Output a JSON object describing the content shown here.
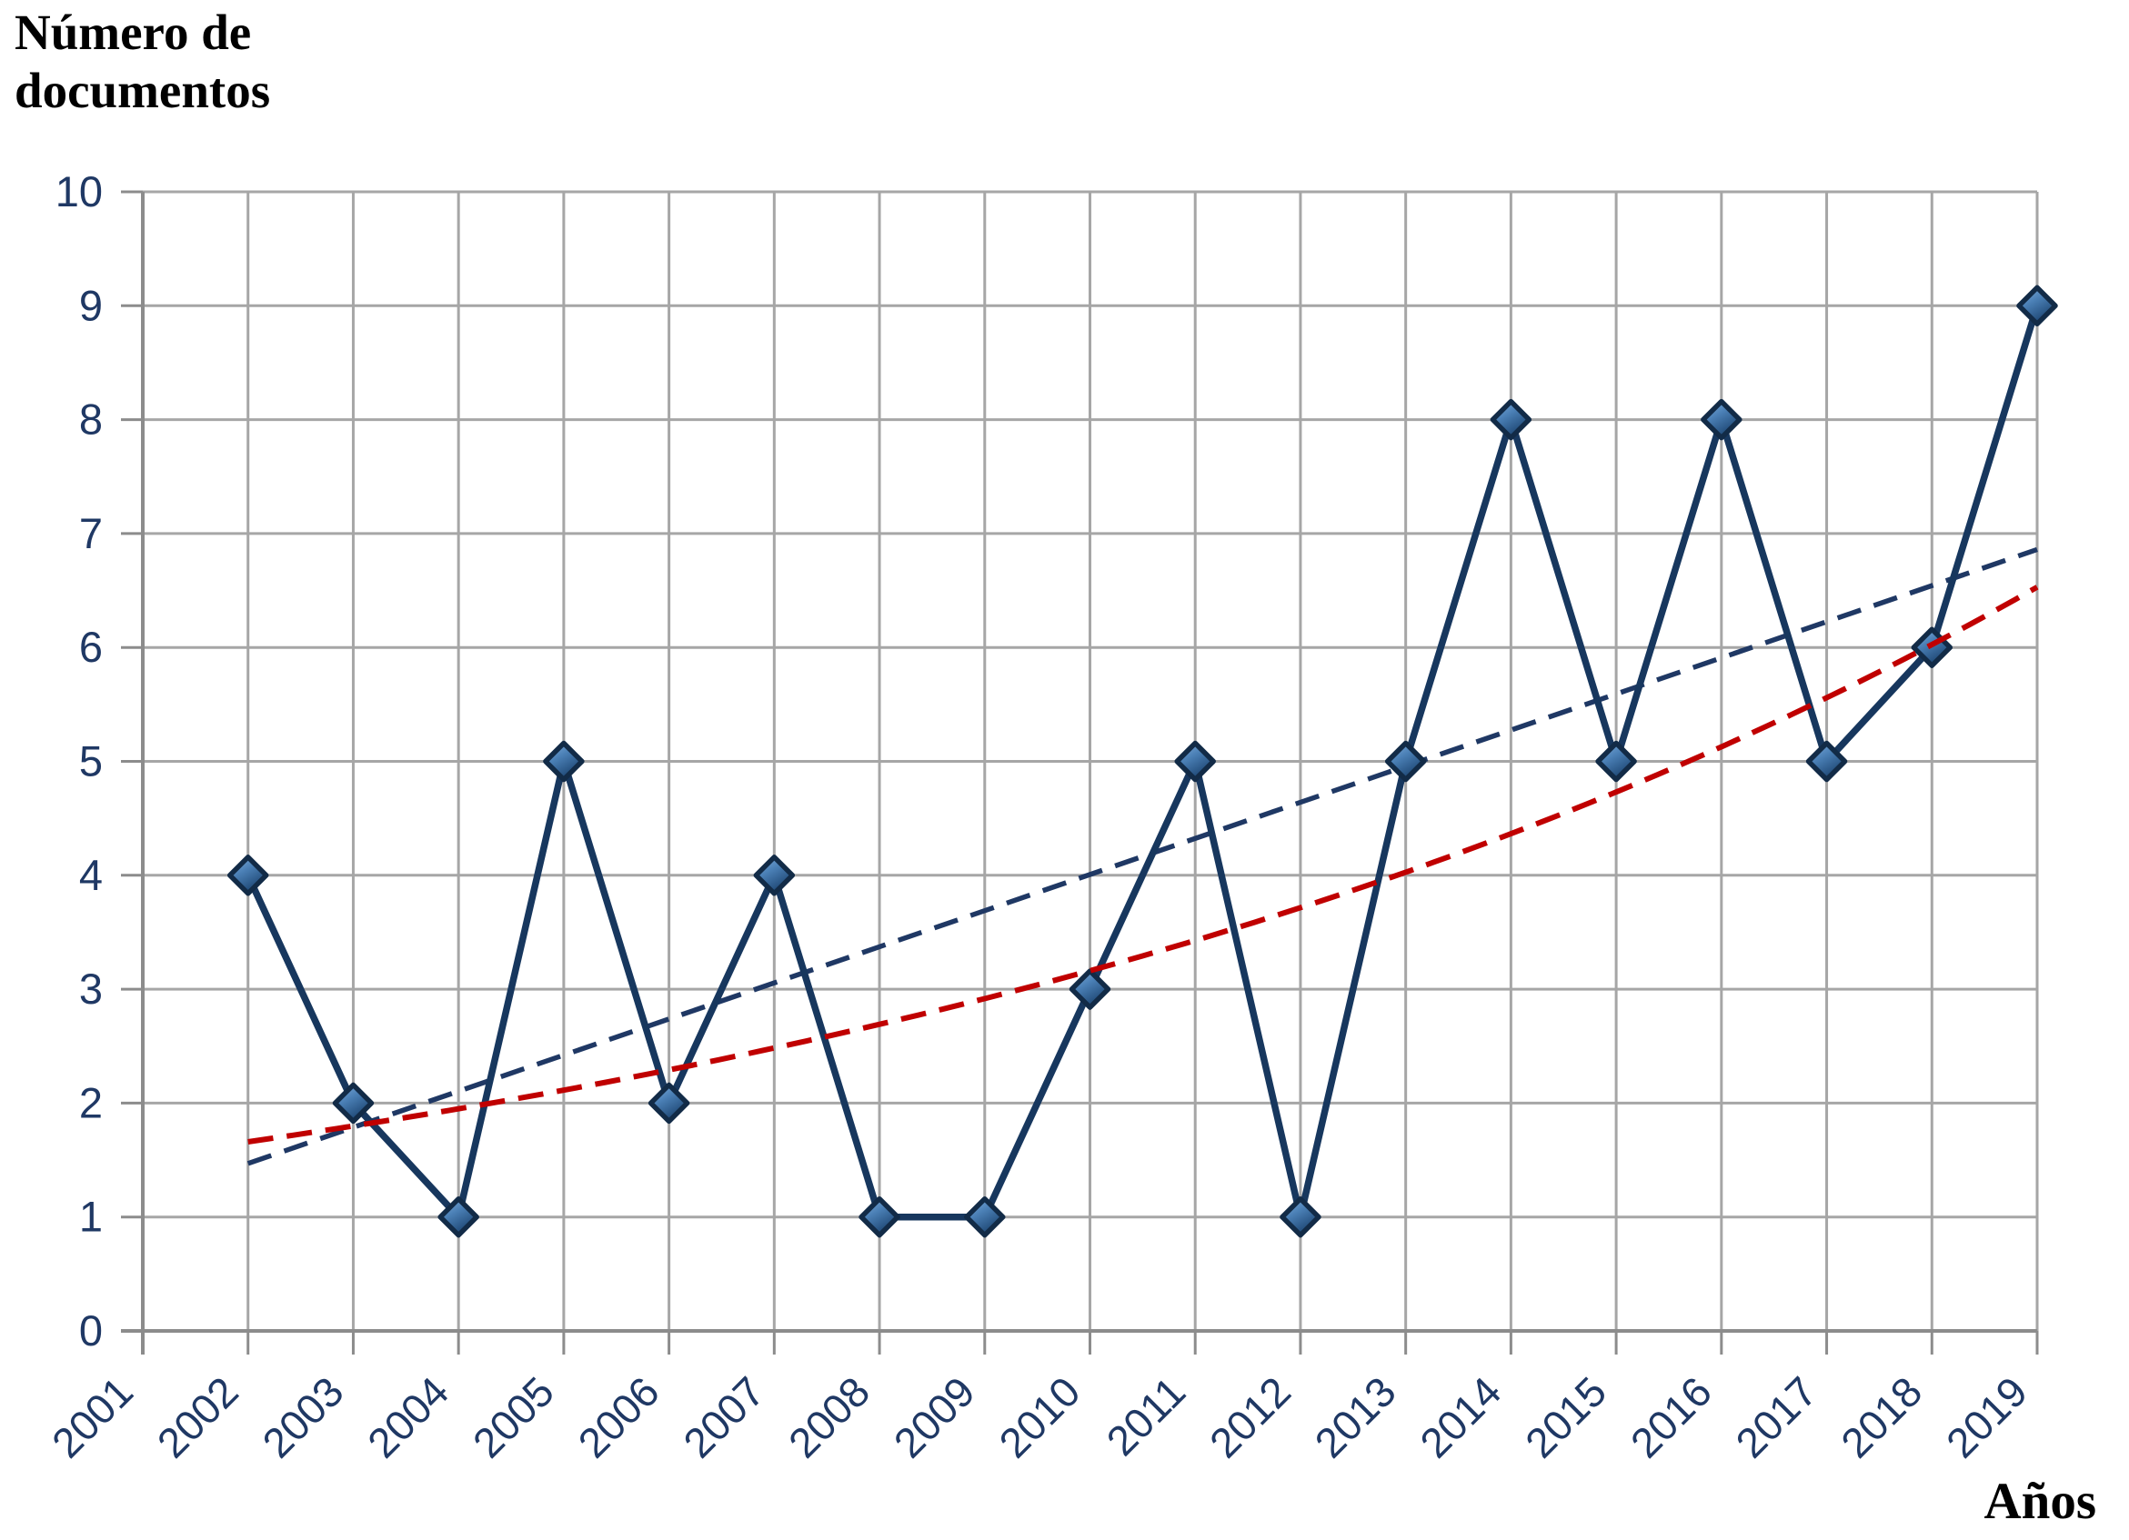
{
  "header": {
    "title_lines": [
      "Número de",
      "documentos"
    ]
  },
  "x_axis": {
    "title": "Años"
  },
  "chart_data": {
    "type": "line",
    "title": "Número de documentos",
    "xlabel": "Años",
    "ylabel": "Número de documentos",
    "categories": [
      "2001",
      "2002",
      "2003",
      "2004",
      "2005",
      "2006",
      "2007",
      "2008",
      "2009",
      "2010",
      "2011",
      "2012",
      "2013",
      "2014",
      "2015",
      "2016",
      "2017",
      "2018",
      "2019"
    ],
    "series": [
      {
        "name": "Número de documentos",
        "marker": "diamond",
        "values": [
          null,
          4,
          2,
          1,
          5,
          2,
          4,
          1,
          1,
          3,
          5,
          1,
          5,
          8,
          5,
          8,
          5,
          6,
          9
        ]
      }
    ],
    "trendlines": [
      {
        "name": "linear trend",
        "type": "linear",
        "dashed": true,
        "from": {
          "category": "2002",
          "value": 1.47
        },
        "to": {
          "category": "2019",
          "value": 6.86
        }
      },
      {
        "name": "exponential trend",
        "type": "exponential",
        "dashed": true,
        "from": {
          "category": "2002",
          "value": 1.66
        },
        "to": {
          "category": "2019",
          "value": 6.53
        }
      }
    ],
    "ylim": [
      0,
      10
    ],
    "ytick_step": 1,
    "grid": true,
    "legend_position": "none",
    "colors": {
      "grid": "#A6A6A6",
      "axis": "#8C8C8C",
      "tick_labels": "#1F3864",
      "series_line": "#17375E",
      "marker_stroke": "#122B47",
      "marker_fill_top": "#85B2DF",
      "marker_fill_mid": "#4A7FB5",
      "marker_fill_bottom": "#1A426E",
      "trend_linear": "#1F3864",
      "trend_exponential": "#C00000"
    }
  }
}
